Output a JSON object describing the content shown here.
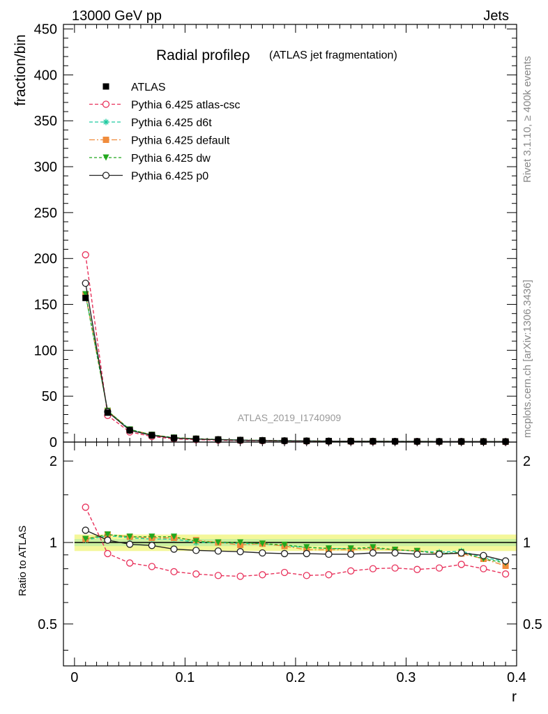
{
  "header": {
    "left": "13000 GeV pp",
    "right": "Jets",
    "side_top": "Rivet 3.1.10, ≥ 400k events",
    "side_bottom": "mcplots.cern.ch [arXiv:1306.3436]"
  },
  "chart_data": {
    "type": "line",
    "title": "Radial profileρ",
    "title_suffix": "(ATLAS jet fragmentation)",
    "analysis_label": "ATLAS_2019_I1740909",
    "xlabel": "r",
    "ylabel": "fraction/bin",
    "ratio_ylabel": "Ratio to ATLAS",
    "xlim": [
      -0.01,
      0.4
    ],
    "ylim": [
      0,
      455
    ],
    "ratio_ylim": [
      0.35,
      2.35
    ],
    "ratio_scale": "log",
    "x_ticks": [
      0,
      0.1,
      0.2,
      0.3,
      0.4
    ],
    "x_tick_labels": [
      "0",
      "0.1",
      "0.2",
      "0.3",
      "0.4"
    ],
    "y_ticks": [
      0,
      50,
      100,
      150,
      200,
      250,
      300,
      350,
      400,
      450
    ],
    "y_tick_labels": [
      "0",
      "50",
      "100",
      "150",
      "200",
      "250",
      "300",
      "350",
      "400",
      "450"
    ],
    "ratio_ticks": [
      0.5,
      1,
      2
    ],
    "ratio_tick_labels": [
      "0.5",
      "1",
      "2"
    ],
    "legend_position": "top-left",
    "x": [
      0.01,
      0.03,
      0.05,
      0.07,
      0.09,
      0.11,
      0.13,
      0.15,
      0.17,
      0.19,
      0.21,
      0.23,
      0.25,
      0.27,
      0.29,
      0.31,
      0.33,
      0.35,
      0.37,
      0.39
    ],
    "data": {
      "name": "ATLAS",
      "values": [
        157,
        32,
        13,
        7.5,
        4.5,
        3.5,
        2.8,
        2.2,
        1.8,
        1.5,
        1.3,
        1.1,
        1.0,
        0.9,
        0.8,
        0.75,
        0.7,
        0.65,
        0.6,
        0.55
      ],
      "band_inner": 0.03,
      "band_outer": 0.07
    },
    "series": [
      {
        "name": "Pythia 6.425 atlas-csc",
        "color": "#e8305a",
        "marker": "open-circle",
        "dash": "5,3",
        "values": [
          204,
          29,
          11,
          6.1,
          3.5,
          2.7,
          2.1,
          1.6,
          1.4,
          1.2,
          1.0,
          0.85,
          0.8,
          0.72,
          0.65,
          0.6,
          0.56,
          0.54,
          0.48,
          0.42
        ],
        "ratio": [
          1.35,
          0.91,
          0.84,
          0.815,
          0.78,
          0.765,
          0.755,
          0.75,
          0.76,
          0.775,
          0.755,
          0.76,
          0.785,
          0.8,
          0.805,
          0.795,
          0.805,
          0.83,
          0.8,
          0.765
        ]
      },
      {
        "name": "Pythia 6.425 d6t",
        "color": "#1ec9a0",
        "marker": "star",
        "dash": "5,3",
        "values": [
          160,
          34,
          13.8,
          7.8,
          4.7,
          3.5,
          2.8,
          2.2,
          1.8,
          1.5,
          1.2,
          1.05,
          0.95,
          0.86,
          0.76,
          0.7,
          0.65,
          0.6,
          0.53,
          0.46
        ],
        "ratio": [
          1.02,
          1.06,
          1.04,
          1.03,
          1.03,
          1.0,
          1.0,
          0.99,
          0.99,
          0.97,
          0.96,
          0.95,
          0.95,
          0.95,
          0.94,
          0.93,
          0.92,
          0.93,
          0.88,
          0.85
        ]
      },
      {
        "name": "Pythia 6.425 default",
        "color": "#f08c3c",
        "marker": "square",
        "dash": "8,3,2,3",
        "values": [
          161,
          34,
          13.7,
          7.9,
          4.7,
          3.6,
          2.8,
          2.2,
          1.8,
          1.5,
          1.2,
          1.04,
          0.95,
          0.86,
          0.76,
          0.7,
          0.64,
          0.59,
          0.52,
          0.45
        ],
        "ratio": [
          1.03,
          1.07,
          1.05,
          1.04,
          1.04,
          1.02,
          1.0,
          0.98,
          0.99,
          0.97,
          0.94,
          0.94,
          0.94,
          0.95,
          0.94,
          0.93,
          0.91,
          0.91,
          0.87,
          0.82
        ]
      },
      {
        "name": "Pythia 6.425 dw",
        "color": "#22a81e",
        "marker": "triangle-down",
        "dash": "4,3",
        "values": [
          161,
          34,
          13.7,
          7.9,
          4.8,
          3.6,
          2.8,
          2.2,
          1.8,
          1.5,
          1.25,
          1.05,
          0.96,
          0.86,
          0.76,
          0.7,
          0.64,
          0.59,
          0.52,
          0.46
        ],
        "ratio": [
          1.03,
          1.07,
          1.05,
          1.05,
          1.05,
          1.01,
          1.0,
          1.0,
          0.99,
          0.98,
          0.96,
          0.95,
          0.95,
          0.96,
          0.94,
          0.93,
          0.91,
          0.92,
          0.87,
          0.84
        ]
      },
      {
        "name": "Pythia 6.425 p0",
        "color": "#222222",
        "marker": "open-circle",
        "dash": "",
        "values": [
          173,
          33,
          12.8,
          7.3,
          4.3,
          3.3,
          2.6,
          2.0,
          1.65,
          1.37,
          1.18,
          1.0,
          0.9,
          0.82,
          0.73,
          0.68,
          0.64,
          0.6,
          0.54,
          0.47
        ],
        "ratio": [
          1.11,
          1.02,
          0.985,
          0.975,
          0.945,
          0.935,
          0.93,
          0.925,
          0.915,
          0.91,
          0.91,
          0.905,
          0.905,
          0.915,
          0.915,
          0.905,
          0.905,
          0.915,
          0.895,
          0.855
        ]
      }
    ]
  }
}
